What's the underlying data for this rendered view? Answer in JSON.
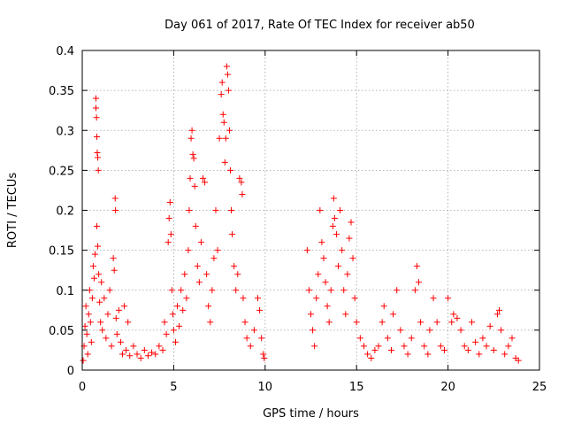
{
  "chart_data": {
    "type": "scatter",
    "title": "Day 061 of 2017, Rate Of TEC Index for receiver ab50",
    "xlabel": "GPS time / hours",
    "ylabel": "ROTI / TECUs",
    "xlim": [
      0,
      25
    ],
    "ylim": [
      0,
      0.4
    ],
    "xticks": [
      "0",
      "5",
      "10",
      "15",
      "20",
      "25"
    ],
    "yticks": [
      "0",
      "0.05",
      "0.1",
      "0.15",
      "0.2",
      "0.25",
      "0.3",
      "0.35",
      "0.4"
    ],
    "grid": true,
    "marker": "+",
    "color": "#ff0000",
    "series": [
      {
        "points": [
          [
            0.05,
            0.012
          ],
          [
            0.1,
            0.03
          ],
          [
            0.15,
            0.055
          ],
          [
            0.2,
            0.08
          ],
          [
            0.25,
            0.045
          ],
          [
            0.3,
            0.02
          ],
          [
            0.35,
            0.07
          ],
          [
            0.4,
            0.1
          ],
          [
            0.45,
            0.06
          ],
          [
            0.5,
            0.035
          ],
          [
            0.55,
            0.09
          ],
          [
            0.6,
            0.13
          ],
          [
            0.65,
            0.115
          ],
          [
            0.7,
            0.145
          ],
          [
            0.75,
            0.34
          ],
          [
            0.75,
            0.328
          ],
          [
            0.78,
            0.316
          ],
          [
            0.8,
            0.292
          ],
          [
            0.82,
            0.272
          ],
          [
            0.85,
            0.266
          ],
          [
            0.88,
            0.25
          ],
          [
            0.8,
            0.18
          ],
          [
            0.85,
            0.155
          ],
          [
            0.9,
            0.12
          ],
          [
            0.95,
            0.085
          ],
          [
            1.0,
            0.06
          ],
          [
            1.05,
            0.11
          ],
          [
            1.1,
            0.05
          ],
          [
            1.2,
            0.09
          ],
          [
            1.3,
            0.04
          ],
          [
            1.4,
            0.07
          ],
          [
            1.5,
            0.1
          ],
          [
            1.6,
            0.03
          ],
          [
            1.7,
            0.14
          ],
          [
            1.75,
            0.125
          ],
          [
            1.8,
            0.215
          ],
          [
            1.82,
            0.2
          ],
          [
            1.85,
            0.065
          ],
          [
            1.9,
            0.045
          ],
          [
            2.0,
            0.075
          ],
          [
            2.1,
            0.035
          ],
          [
            2.2,
            0.02
          ],
          [
            2.3,
            0.08
          ],
          [
            2.4,
            0.025
          ],
          [
            2.5,
            0.06
          ],
          [
            2.6,
            0.018
          ],
          [
            2.8,
            0.03
          ],
          [
            3.0,
            0.02
          ],
          [
            3.2,
            0.015
          ],
          [
            3.4,
            0.025
          ],
          [
            3.6,
            0.018
          ],
          [
            3.8,
            0.022
          ],
          [
            4.0,
            0.02
          ],
          [
            4.2,
            0.03
          ],
          [
            4.4,
            0.025
          ],
          [
            4.5,
            0.06
          ],
          [
            4.6,
            0.045
          ],
          [
            4.7,
            0.16
          ],
          [
            4.75,
            0.19
          ],
          [
            4.8,
            0.21
          ],
          [
            4.85,
            0.17
          ],
          [
            4.9,
            0.1
          ],
          [
            4.95,
            0.07
          ],
          [
            5.0,
            0.05
          ],
          [
            5.1,
            0.035
          ],
          [
            5.2,
            0.08
          ],
          [
            5.3,
            0.055
          ],
          [
            5.4,
            0.1
          ],
          [
            5.5,
            0.075
          ],
          [
            5.6,
            0.12
          ],
          [
            5.7,
            0.09
          ],
          [
            5.8,
            0.15
          ],
          [
            5.85,
            0.2
          ],
          [
            5.9,
            0.24
          ],
          [
            5.95,
            0.29
          ],
          [
            6.0,
            0.3
          ],
          [
            6.05,
            0.27
          ],
          [
            6.1,
            0.265
          ],
          [
            6.15,
            0.23
          ],
          [
            6.2,
            0.18
          ],
          [
            6.3,
            0.13
          ],
          [
            6.4,
            0.11
          ],
          [
            6.5,
            0.16
          ],
          [
            6.6,
            0.24
          ],
          [
            6.7,
            0.235
          ],
          [
            6.8,
            0.12
          ],
          [
            6.9,
            0.08
          ],
          [
            7.0,
            0.06
          ],
          [
            7.1,
            0.1
          ],
          [
            7.2,
            0.14
          ],
          [
            7.3,
            0.2
          ],
          [
            7.4,
            0.15
          ],
          [
            7.5,
            0.29
          ],
          [
            7.6,
            0.345
          ],
          [
            7.65,
            0.36
          ],
          [
            7.7,
            0.32
          ],
          [
            7.75,
            0.31
          ],
          [
            7.8,
            0.26
          ],
          [
            7.85,
            0.29
          ],
          [
            7.9,
            0.38
          ],
          [
            7.95,
            0.37
          ],
          [
            8.0,
            0.35
          ],
          [
            8.05,
            0.3
          ],
          [
            8.1,
            0.25
          ],
          [
            8.15,
            0.2
          ],
          [
            8.2,
            0.17
          ],
          [
            8.3,
            0.13
          ],
          [
            8.4,
            0.1
          ],
          [
            8.5,
            0.12
          ],
          [
            8.6,
            0.24
          ],
          [
            8.7,
            0.235
          ],
          [
            8.75,
            0.22
          ],
          [
            8.8,
            0.09
          ],
          [
            8.9,
            0.06
          ],
          [
            9.0,
            0.04
          ],
          [
            9.2,
            0.03
          ],
          [
            9.4,
            0.05
          ],
          [
            9.6,
            0.09
          ],
          [
            9.7,
            0.075
          ],
          [
            9.8,
            0.04
          ],
          [
            9.9,
            0.02
          ],
          [
            9.95,
            0.015
          ],
          [
            12.3,
            0.15
          ],
          [
            12.4,
            0.1
          ],
          [
            12.5,
            0.07
          ],
          [
            12.6,
            0.05
          ],
          [
            12.7,
            0.03
          ],
          [
            12.8,
            0.09
          ],
          [
            12.9,
            0.12
          ],
          [
            13.0,
            0.2
          ],
          [
            13.1,
            0.16
          ],
          [
            13.2,
            0.14
          ],
          [
            13.3,
            0.11
          ],
          [
            13.4,
            0.08
          ],
          [
            13.5,
            0.06
          ],
          [
            13.6,
            0.1
          ],
          [
            13.7,
            0.18
          ],
          [
            13.75,
            0.215
          ],
          [
            13.8,
            0.19
          ],
          [
            13.9,
            0.17
          ],
          [
            14.0,
            0.13
          ],
          [
            14.1,
            0.2
          ],
          [
            14.2,
            0.15
          ],
          [
            14.3,
            0.1
          ],
          [
            14.4,
            0.07
          ],
          [
            14.5,
            0.12
          ],
          [
            14.6,
            0.165
          ],
          [
            14.7,
            0.185
          ],
          [
            14.8,
            0.14
          ],
          [
            14.9,
            0.09
          ],
          [
            15.0,
            0.06
          ],
          [
            15.2,
            0.04
          ],
          [
            15.4,
            0.03
          ],
          [
            15.6,
            0.02
          ],
          [
            15.8,
            0.015
          ],
          [
            16.0,
            0.025
          ],
          [
            16.2,
            0.03
          ],
          [
            16.4,
            0.06
          ],
          [
            16.5,
            0.08
          ],
          [
            16.7,
            0.04
          ],
          [
            16.9,
            0.025
          ],
          [
            17.0,
            0.07
          ],
          [
            17.2,
            0.1
          ],
          [
            17.4,
            0.05
          ],
          [
            17.6,
            0.03
          ],
          [
            17.8,
            0.02
          ],
          [
            18.0,
            0.04
          ],
          [
            18.2,
            0.1
          ],
          [
            18.3,
            0.13
          ],
          [
            18.4,
            0.11
          ],
          [
            18.5,
            0.06
          ],
          [
            18.7,
            0.03
          ],
          [
            18.9,
            0.02
          ],
          [
            19.0,
            0.05
          ],
          [
            19.2,
            0.09
          ],
          [
            19.4,
            0.06
          ],
          [
            19.6,
            0.03
          ],
          [
            19.8,
            0.025
          ],
          [
            20.0,
            0.09
          ],
          [
            20.2,
            0.06
          ],
          [
            20.3,
            0.07
          ],
          [
            20.5,
            0.065
          ],
          [
            20.7,
            0.05
          ],
          [
            20.9,
            0.03
          ],
          [
            21.1,
            0.025
          ],
          [
            21.3,
            0.06
          ],
          [
            21.5,
            0.035
          ],
          [
            21.7,
            0.02
          ],
          [
            21.9,
            0.04
          ],
          [
            22.1,
            0.03
          ],
          [
            22.3,
            0.055
          ],
          [
            22.5,
            0.025
          ],
          [
            22.7,
            0.07
          ],
          [
            22.8,
            0.075
          ],
          [
            22.9,
            0.05
          ],
          [
            23.1,
            0.02
          ],
          [
            23.3,
            0.03
          ],
          [
            23.5,
            0.04
          ],
          [
            23.7,
            0.015
          ],
          [
            23.85,
            0.012
          ]
        ]
      }
    ]
  }
}
